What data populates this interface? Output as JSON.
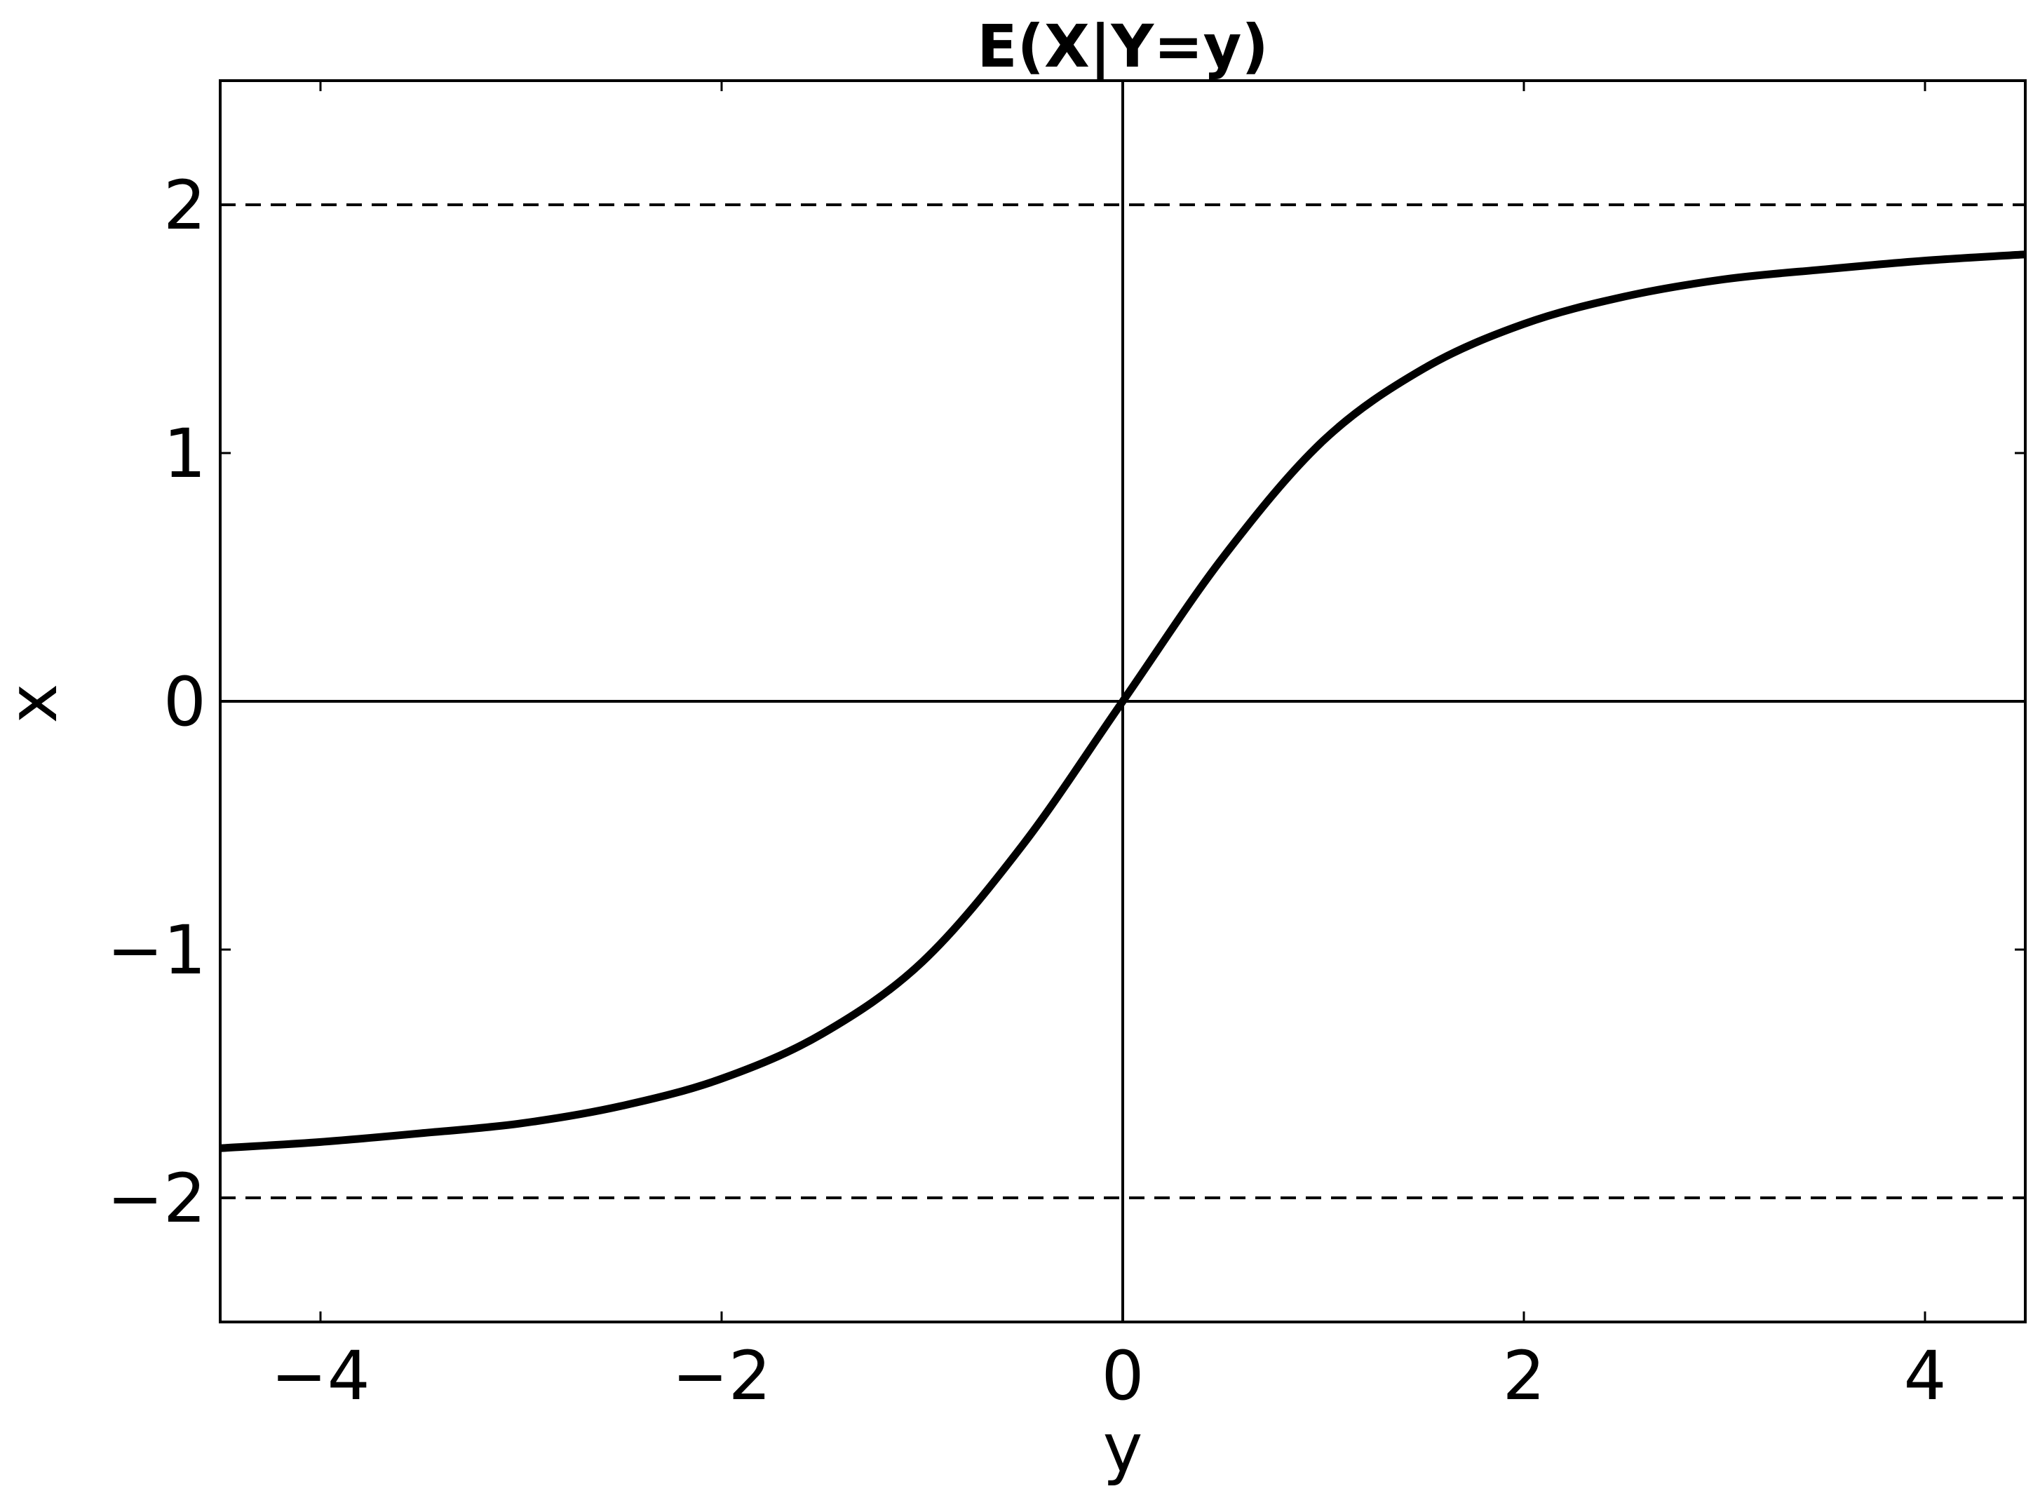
{
  "chart_data": {
    "type": "line",
    "title": "E(X|Y=y)",
    "xlabel": "y",
    "ylabel": "x",
    "xlim": [
      -4.5,
      4.5
    ],
    "ylim": [
      -2.5,
      2.5
    ],
    "xticks": [
      -4,
      -2,
      0,
      2,
      4
    ],
    "xtick_labels": [
      "−4",
      "−2",
      "0",
      "2",
      "4"
    ],
    "yticks": [
      -2,
      -1,
      0,
      1,
      2
    ],
    "ytick_labels": [
      "−2",
      "−1",
      "0",
      "1",
      "2"
    ],
    "grid": false,
    "colors": {
      "line": "#000000",
      "axes": "#000000",
      "background": "#ffffff"
    },
    "reference_lines": [
      {
        "orientation": "horizontal",
        "value": 2,
        "style": "dashed"
      },
      {
        "orientation": "horizontal",
        "value": -2,
        "style": "dashed"
      },
      {
        "orientation": "horizontal",
        "value": 0,
        "style": "solid"
      },
      {
        "orientation": "vertical",
        "value": 0,
        "style": "solid"
      }
    ],
    "series": [
      {
        "style": "solid-thick",
        "x": [
          -4.5,
          -4.0,
          -3.5,
          -3.0,
          -2.5,
          -2.0,
          -1.5,
          -1.0,
          -0.5,
          0.0,
          0.5,
          1.0,
          1.5,
          2.0,
          2.5,
          3.0,
          3.5,
          4.0,
          4.5
        ],
        "y": [
          -1.8,
          -1.775,
          -1.74,
          -1.7,
          -1.63,
          -1.52,
          -1.34,
          -1.05,
          -0.58,
          0.0,
          0.58,
          1.05,
          1.34,
          1.52,
          1.63,
          1.7,
          1.74,
          1.775,
          1.8
        ]
      }
    ]
  }
}
